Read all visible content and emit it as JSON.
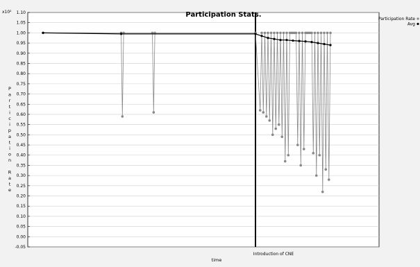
{
  "chart_data": {
    "type": "line",
    "title": "Participation Stats.",
    "xlabel": "time",
    "ylabel": "Participation Rate",
    "y_multiplier": "x10²",
    "ylim": [
      -0.05,
      1.1
    ],
    "yticks": [
      -0.05,
      0.0,
      0.05,
      0.1,
      0.15,
      0.2,
      0.25,
      0.3,
      0.35,
      0.4,
      0.45,
      0.5,
      0.55,
      0.6,
      0.65,
      0.7,
      0.75,
      0.8,
      0.85,
      0.9,
      0.95,
      1.0,
      1.05,
      1.1
    ],
    "xlim": [
      0,
      100
    ],
    "grid": true,
    "legend_position": "top-right",
    "event_marker": {
      "x": 68,
      "label": "Introduction of CNE"
    },
    "series": [
      {
        "name": "Participation Rate",
        "color": "#888888",
        "x": [
          0,
          25,
          25.4,
          25.8,
          35,
          35.4,
          35.8,
          68,
          69.5,
          70,
          70.5,
          71,
          71.5,
          72,
          72.5,
          73,
          73.5,
          74,
          74.5,
          75,
          75.5,
          76,
          76.5,
          77,
          77.5,
          78,
          78.5,
          79,
          79.5,
          80,
          80.5,
          81,
          81.5,
          82,
          82.5,
          83,
          83.5,
          84,
          84.5,
          85,
          85.5,
          86,
          86.5,
          87,
          87.5,
          88,
          88.5,
          89,
          89.5,
          90,
          90.5,
          91,
          91.5,
          92
        ],
        "values": [
          1.0,
          1.0,
          0.59,
          1.0,
          1.0,
          0.61,
          1.0,
          1.0,
          0.62,
          1.0,
          0.61,
          1.0,
          0.59,
          1.0,
          0.57,
          1.0,
          0.5,
          1.0,
          0.53,
          1.0,
          0.55,
          1.0,
          0.49,
          1.0,
          0.37,
          1.0,
          0.4,
          1.0,
          1.0,
          1.0,
          1.0,
          1.0,
          0.45,
          1.0,
          0.35,
          1.0,
          0.43,
          1.0,
          1.0,
          1.0,
          1.0,
          1.0,
          0.41,
          1.0,
          0.3,
          1.0,
          0.4,
          1.0,
          0.22,
          1.0,
          0.33,
          1.0,
          0.28,
          1.0
        ]
      },
      {
        "name": "Avg",
        "color": "#000000",
        "x": [
          0,
          25,
          68,
          70,
          72,
          74,
          76,
          78,
          80,
          82,
          84,
          86,
          88,
          90,
          92
        ],
        "values": [
          1.0,
          0.995,
          0.995,
          0.985,
          0.975,
          0.97,
          0.965,
          0.965,
          0.962,
          0.96,
          0.958,
          0.955,
          0.95,
          0.945,
          0.94
        ]
      }
    ]
  }
}
